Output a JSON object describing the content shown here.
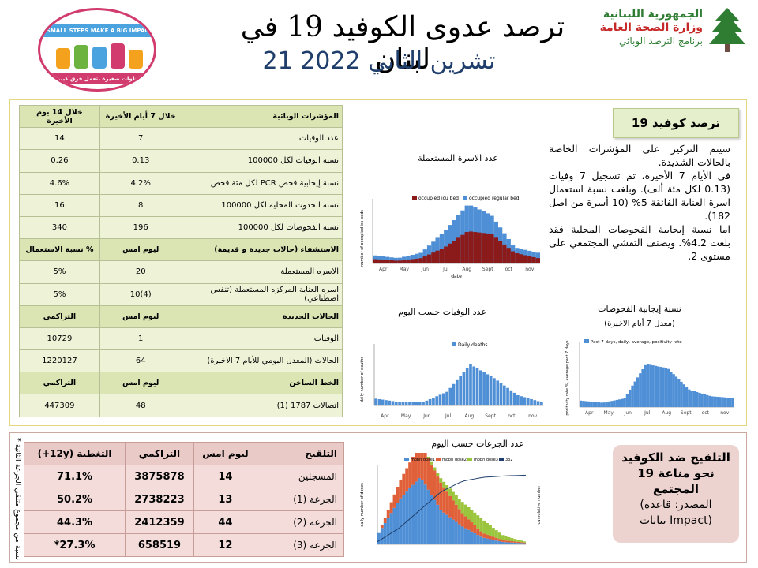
{
  "header": {
    "title": "ترصد عدوى الكوفيد 19 في لبنان",
    "date": "21 تشرين الثاني 2022",
    "ministry_line1": "الجمهورية اللبنانية",
    "ministry_line2": "وزارة الصحة العامة",
    "ministry_line3": "برنامج الترصد الوبائي",
    "logo_banner": "SMALL STEPS MAKE A BIG IMPACT",
    "logo_arabic": "خطوات صغيرة بتعمل فرق كبير"
  },
  "indicators": {
    "header": [
      "المؤشرات الوبائية",
      "خلال 7 أيام الأخيرة",
      "خلال 14 يوم الأخيرة"
    ],
    "rows": [
      [
        "عدد الوفيات",
        "7",
        "14"
      ],
      [
        "نسبة الوفيات لكل 100000",
        "0.13",
        "0.26"
      ],
      [
        "نسبة إيجابية فحص PCR لكل مئة فحص",
        "4.2%",
        "4.6%"
      ],
      [
        "نسبة الحدوث المحلية لكل 100000",
        "8",
        "16"
      ],
      [
        "نسبة الفحوصات لكل 100000",
        "196",
        "340"
      ]
    ],
    "hosp_header": [
      "الاستشفاء (حالات جديدة و قديمة)",
      "ليوم امس",
      "% نسبة الاستعمال"
    ],
    "hosp_rows": [
      [
        "الاسره المستعملة",
        "20",
        "5%"
      ],
      [
        "اسره العناية المركزه المستعملة (تنفس اصطناعي)",
        "(4)10",
        "5%"
      ]
    ],
    "new_header": [
      "الحالات الجديدة",
      "ليوم امس",
      "التراكمي"
    ],
    "new_rows": [
      [
        "الوفيات",
        "1",
        "10729"
      ],
      [
        "الحالات (المعدل اليومي للأيام 7 الاخيرة)",
        "64",
        "1220127"
      ]
    ],
    "hotline_header": [
      "الخط الساخن",
      "ليوم امس",
      "التراكمي"
    ],
    "hotline_rows": [
      [
        "اتصالات 1787 (1)",
        "48",
        "447309"
      ]
    ]
  },
  "summary": {
    "box_title": "ترصد كوفيد 19",
    "paragraph1": "سيتم التركيز على المؤشرات الخاصة بالحالات الشديدة.",
    "paragraph2": "في الأيام 7 الأخيرة، تم تسجيل 7 وفيات (0.13 لكل مئة ألف). وبلغت نسبة استعمال اسرة العناية الفائقة 5% (10 أسرة من اصل 182).",
    "paragraph3": "اما نسبة إيجابية الفحوصات المحلية فقد بلغت 4.2%. ويصنف التفشي المجتمعي على مستوى 2."
  },
  "charts": {
    "beds_title": "عدد الاسرة المستعملة",
    "beds_legend1": "occupied icu bed",
    "beds_legend2": "occupied regular bed",
    "beds_ylabel": "number of occupied ics beds",
    "beds_xlabel": "date",
    "deaths_title": "عدد الوفيات حسب اليوم",
    "deaths_legend": "Daily deaths",
    "deaths_ylabel": "daily number of deaths",
    "pos_title": "نسبة إيجابية الفحوصات",
    "pos_subtitle": "(معدل 7 أيام الاخيرة)",
    "pos_legend": "Past 7 days, daily, average, positivity rate",
    "pos_ylabel": "positivity rate %, average past 7 days",
    "doses_title": "عدد الجرعات حسب اليوم",
    "doses_legend": [
      "moph dose1",
      "moph dose2",
      "moph dose3",
      "332"
    ],
    "doses_ylabel": "daily number of doses",
    "doses_ylabel2": "cumulative number"
  },
  "chart_data": [
    {
      "type": "area",
      "title": "عدد الاسرة المستعملة",
      "xlabel": "date",
      "ylabel": "number of occupied ics beds",
      "x": [
        "Apr",
        "May",
        "Jun",
        "Jul",
        "Aug",
        "Sept",
        "oct",
        "nov"
      ],
      "series": [
        {
          "name": "occupied icu bed",
          "values": [
            8,
            5,
            10,
            30,
            60,
            55,
            20,
            10
          ]
        },
        {
          "name": "occupied regular bed",
          "values": [
            15,
            10,
            20,
            60,
            110,
            90,
            30,
            20
          ]
        }
      ],
      "ylim": [
        0,
        120
      ]
    },
    {
      "type": "bar",
      "title": "عدد الوفيات حسب اليوم",
      "ylabel": "daily number of deaths",
      "x": [
        "Apr",
        "May",
        "Jun",
        "Jul",
        "Aug",
        "Sept",
        "oct",
        "nov"
      ],
      "series": [
        {
          "name": "Daily deaths",
          "values": [
            2,
            1,
            1,
            4,
            12,
            8,
            3,
            1
          ]
        }
      ],
      "ylim": [
        0,
        18
      ]
    },
    {
      "type": "area",
      "title": "نسبة إيجابية الفحوصات",
      "subtitle": "(معدل 7 أيام الاخيرة)",
      "ylabel": "positivity rate %, average past 7 days",
      "x": [
        "Apr",
        "May",
        "Jun",
        "Jul",
        "Aug",
        "Sept",
        "oct",
        "nov"
      ],
      "series": [
        {
          "name": "Past 7 days, daily, average, positivity rate",
          "values": [
            3,
            2,
            4,
            20,
            18,
            8,
            5,
            4.2
          ]
        }
      ],
      "ylim": [
        0,
        30
      ]
    },
    {
      "type": "bar",
      "title": "عدد الجرعات حسب اليوم",
      "ylabel": "daily number of doses",
      "series": [
        {
          "name": "moph dose1",
          "values": [
            5000,
            20000,
            30000,
            15000,
            8000,
            3000,
            1000,
            500
          ]
        },
        {
          "name": "moph dose2",
          "values": [
            0,
            8000,
            15000,
            12000,
            6000,
            2000,
            800,
            300
          ]
        },
        {
          "name": "moph dose3",
          "values": [
            0,
            0,
            0,
            2000,
            5000,
            6000,
            2000,
            500
          ]
        },
        {
          "name": "332",
          "values": [
            100000,
            600000,
            1300000,
            2000000,
            2400000,
            2550000,
            2600000,
            2630000
          ]
        }
      ],
      "ylim": [
        0,
        35000
      ]
    }
  ],
  "vaccination": {
    "header": [
      "التلقيح",
      "ليوم امس",
      "التراكمي",
      "التغطية (12y+)"
    ],
    "rows": [
      [
        "المسجلين",
        "14",
        "3875878",
        "71.1%"
      ],
      [
        "الجرعة (1)",
        "13",
        "2738223",
        "50.2%"
      ],
      [
        "الجرعة (2)",
        "44",
        "2412359",
        "44.3%"
      ],
      [
        "الجرعة (3)",
        "12",
        "658519",
        "27.3%*"
      ]
    ],
    "side_note": "* نسبة من مجموع متلقي الجرعة الثانية",
    "box_line1": "التلقيح ضد الكوفيد",
    "box_line2": "19 نحو مناعة",
    "box_line3": "المجتمع",
    "box_line4": "(المصدر: قاعدة",
    "box_line5": "بيانات Impact)"
  },
  "colors": {
    "icu": "#8b1a1a",
    "regular": "#4f8fd6",
    "table_green": "#eef3d8",
    "table_pink": "#f3dcda"
  }
}
